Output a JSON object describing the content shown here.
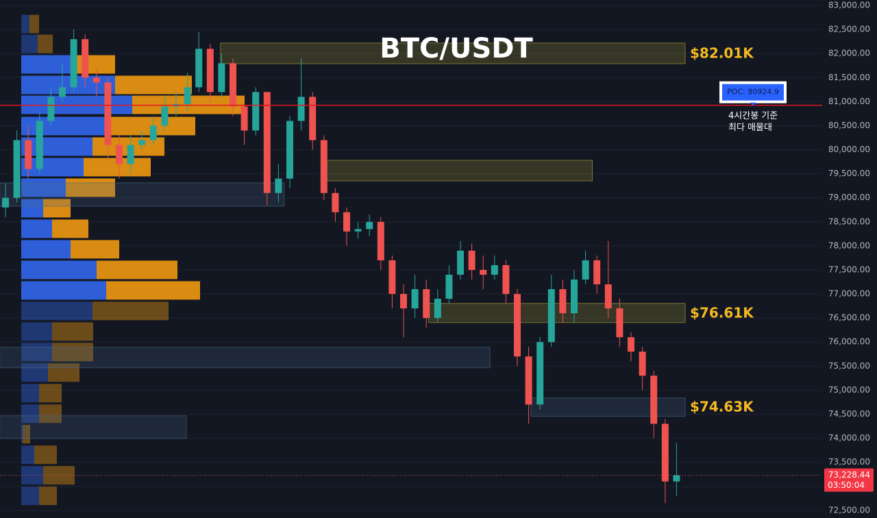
{
  "chart_data": {
    "type": "candlestick",
    "title": "BTC/USDT",
    "open": [
      78800,
      79000,
      80200,
      79600,
      80600,
      81100,
      81300,
      82300,
      81500,
      81400,
      80100,
      79700,
      80100,
      80200,
      80500,
      80900,
      80950,
      81300,
      82100,
      81200,
      81800,
      80900,
      80400,
      81200,
      79100,
      79400,
      80600,
      81100,
      80200,
      79100,
      78700,
      78300,
      78350,
      78500,
      77700,
      77000,
      76700,
      77100,
      76500,
      76900,
      77400,
      77900,
      77500,
      77400,
      77600,
      77000,
      75700,
      74700,
      76000,
      77100,
      76600,
      77300,
      77700,
      77200,
      76700,
      76100,
      75800,
      75300,
      74300,
      73100
    ],
    "high": [
      79300,
      80400,
      80500,
      80800,
      81300,
      81800,
      82500,
      82400,
      81700,
      81500,
      80300,
      80300,
      80400,
      80700,
      81100,
      81200,
      81600,
      82450,
      82200,
      82000,
      81900,
      81000,
      81300,
      81200,
      79700,
      80700,
      81900,
      81200,
      80300,
      79200,
      78800,
      78500,
      78650,
      78600,
      77800,
      77200,
      77400,
      77300,
      77100,
      77600,
      78100,
      78050,
      77800,
      77800,
      77700,
      77100,
      75900,
      76100,
      77400,
      77300,
      77500,
      77900,
      77800,
      78100,
      76900,
      76200,
      75900,
      75400,
      74400,
      73900
    ],
    "low": [
      78600,
      78900,
      79400,
      79500,
      80500,
      81000,
      81200,
      81300,
      81100,
      79800,
      79400,
      79500,
      80000,
      80100,
      80400,
      80700,
      80800,
      81200,
      81000,
      81100,
      80700,
      80100,
      80300,
      78850,
      78900,
      79200,
      80400,
      80000,
      78950,
      78500,
      78000,
      78150,
      78200,
      77500,
      76700,
      76100,
      76500,
      76300,
      76400,
      76800,
      77300,
      77300,
      77100,
      77300,
      76800,
      75500,
      74300,
      74600,
      75900,
      76400,
      76400,
      77200,
      77000,
      76500,
      75900,
      75600,
      75000,
      74000,
      72650,
      72800
    ],
    "close": [
      79000,
      80200,
      79600,
      80600,
      81100,
      81300,
      82300,
      81500,
      81400,
      80100,
      79700,
      80100,
      80200,
      80500,
      80900,
      80950,
      81300,
      82100,
      81200,
      81800,
      80900,
      80400,
      81200,
      79100,
      79400,
      80600,
      81100,
      80200,
      79100,
      78700,
      78300,
      78350,
      78500,
      77700,
      77000,
      76700,
      77100,
      76500,
      76900,
      77400,
      77900,
      77500,
      77400,
      77600,
      77000,
      75700,
      74700,
      76000,
      77100,
      76600,
      77300,
      77700,
      77200,
      76700,
      76100,
      75800,
      75300,
      74300,
      73100,
      73228.44
    ],
    "up_color": "#26a69a",
    "down_color": "#ef5350",
    "ylim": [
      72340,
      83115
    ],
    "yticks": [
      {
        "value": 72500,
        "label": "72,500.00"
      },
      {
        "value": 73000,
        "label": "73,000.00"
      },
      {
        "value": 73500,
        "label": "73,500.00"
      },
      {
        "value": 74000,
        "label": "74,000.00"
      },
      {
        "value": 74500,
        "label": "74,500.00"
      },
      {
        "value": 75000,
        "label": "75,000.00"
      },
      {
        "value": 75500,
        "label": "75,500.00"
      },
      {
        "value": 76000,
        "label": "76,000.00"
      },
      {
        "value": 76500,
        "label": "76,500.00"
      },
      {
        "value": 77000,
        "label": "77,000.00"
      },
      {
        "value": 77500,
        "label": "77,500.00"
      },
      {
        "value": 78000,
        "label": "78,000.00"
      },
      {
        "value": 78500,
        "label": "78,500.00"
      },
      {
        "value": 79000,
        "label": "79,000.00"
      },
      {
        "value": 79500,
        "label": "79,500.00"
      },
      {
        "value": 80000,
        "label": "80,000.00"
      },
      {
        "value": 80500,
        "label": "80,500.00"
      },
      {
        "value": 81000,
        "label": "81,000.00"
      },
      {
        "value": 81500,
        "label": "81,500.00"
      },
      {
        "value": 82000,
        "label": "82,000.00"
      },
      {
        "value": 82500,
        "label": "82,500.00"
      },
      {
        "value": 83000,
        "label": "83,000.00"
      }
    ],
    "grid": true,
    "volume_profile": {
      "levels": [
        82615,
        82202,
        81775,
        81348,
        80934,
        80493,
        80066,
        79638,
        79211,
        78783,
        78356,
        77929,
        77501,
        77074,
        76647,
        76219,
        75792,
        75365,
        74937,
        74510,
        74083,
        73655,
        73228,
        72801
      ],
      "buy": [
        12,
        24,
        74,
        137,
        162,
        122,
        104,
        91,
        65,
        32,
        45,
        72,
        110,
        124,
        104,
        45,
        45,
        39,
        26,
        26,
        2,
        19,
        32,
        26
      ],
      "sell": [
        14,
        22,
        63,
        112,
        164,
        132,
        105,
        98,
        72,
        40,
        53,
        71,
        118,
        137,
        111,
        60,
        60,
        46,
        33,
        33,
        11,
        33,
        46,
        26
      ],
      "buy_color": "#2f5fd8",
      "sell_color": "#d98b12",
      "value_area_high": 82000,
      "value_area_low": 76900
    },
    "zones": [
      {
        "high": 82220,
        "low": 81790,
        "start": 18.9,
        "end": 59.76,
        "color": "#b5a93a",
        "label": "$82.01K"
      },
      {
        "high": 79781,
        "low": 79353,
        "start": 27.8,
        "end": 51.6,
        "color": "#b5a93a"
      },
      {
        "high": 76804,
        "low": 76405,
        "start": 37.2,
        "end": 59.76,
        "color": "#b5a93a",
        "label": "$76.61K"
      },
      {
        "high": 74838,
        "low": 74453,
        "start": 46.2,
        "end": 59.76,
        "color": "#4a6a8a",
        "label": "$74.63K"
      },
      {
        "high": 79311,
        "low": 78826,
        "start": -0.5,
        "end": 24.5,
        "color": "#4a6a8a"
      },
      {
        "high": 75892,
        "low": 75464,
        "start": -0.5,
        "end": 42.6,
        "color": "#4a6a8a"
      },
      {
        "high": 74467,
        "low": 73997,
        "start": -0.5,
        "end": 15.9,
        "color": "#4a6a8a"
      }
    ],
    "poc": {
      "value": 80924.9,
      "label": "POC: 80924.9",
      "color": "#e0191f"
    },
    "annotation": [
      "4시간봉 기준",
      "최다 매물대"
    ],
    "last_price": {
      "value": 73228.44,
      "label": "73,228.44"
    },
    "countdown": "03:50:04"
  }
}
